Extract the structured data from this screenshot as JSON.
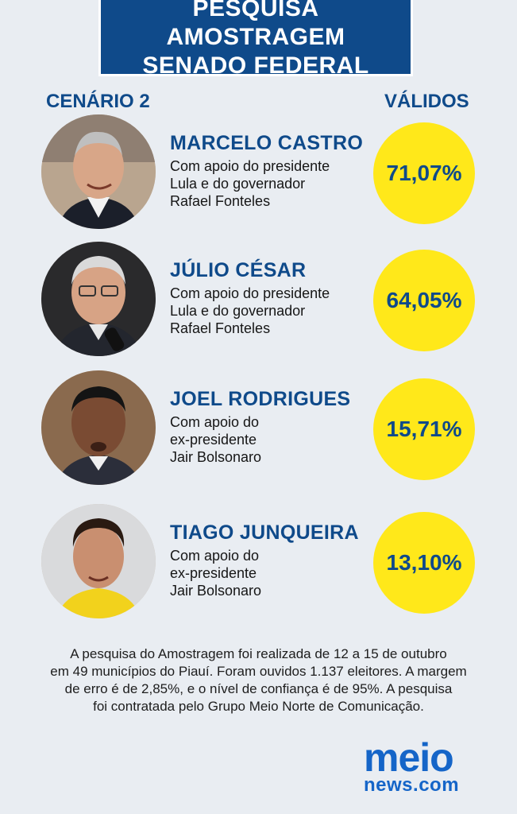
{
  "header": {
    "title_line1": "PESQUISA AMOSTRAGEM",
    "title_line2": "SENADO FEDERAL"
  },
  "scenario_label": "CENÁRIO 2",
  "valid_label": "VÁLIDOS",
  "colors": {
    "brand_blue": "#0f4a8a",
    "highlight_yellow": "#ffe81a",
    "background": "#e9edf2",
    "logo_blue": "#1565c8"
  },
  "candidates": [
    {
      "name": "MARCELO CASTRO",
      "support": [
        "Com apoio do presidente",
        "Lula e do governador",
        "Rafael Fonteles"
      ],
      "percent": "71,07%"
    },
    {
      "name": "JÚLIO CÉSAR",
      "support": [
        "Com apoio do presidente",
        "Lula e do governador",
        "Rafael Fonteles"
      ],
      "percent": "64,05%"
    },
    {
      "name": "JOEL RODRIGUES",
      "support": [
        "Com apoio do",
        "ex-presidente",
        "Jair Bolsonaro"
      ],
      "percent": "15,71%"
    },
    {
      "name": "TIAGO JUNQUEIRA",
      "support": [
        "Com apoio do",
        "ex-presidente",
        "Jair Bolsonaro"
      ],
      "percent": "13,10%"
    }
  ],
  "footnote": [
    "A pesquisa do Amostragem foi realizada de 12 a 15 de outubro",
    "em 49 municípios do Piauí. Foram ouvidos 1.137 eleitores. A margem",
    "de erro é de 2,85%, e o nível de confiança é de 95%. A pesquisa",
    "foi contratada pelo Grupo Meio Norte de Comunicação."
  ],
  "logo": {
    "top": "meio",
    "bottom": "news.com"
  }
}
